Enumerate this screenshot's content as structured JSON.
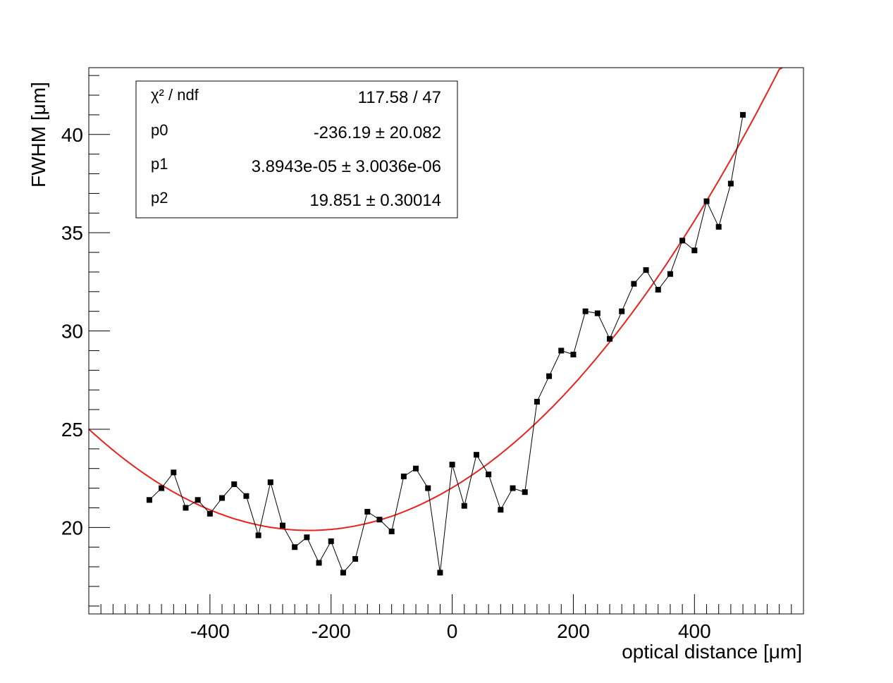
{
  "chart_data": {
    "type": "scatter",
    "xlabel": "optical distance [μm]",
    "ylabel": "FWHM [μm]",
    "xlim": [
      -600,
      580
    ],
    "ylim": [
      15.6,
      43.4
    ],
    "xticks": [
      -400,
      -200,
      0,
      200,
      400
    ],
    "xtick_labels": [
      "-400",
      "-200",
      "0",
      "200",
      "400"
    ],
    "yticks": [
      20,
      25,
      30,
      35,
      40
    ],
    "ytick_labels": [
      "20",
      "25",
      "30",
      "35",
      "40"
    ],
    "grid": false,
    "series": [
      {
        "kind": "points-with-line",
        "color": "#000000",
        "x": [
          -500,
          -480,
          -460,
          -440,
          -420,
          -400,
          -380,
          -360,
          -340,
          -320,
          -300,
          -280,
          -260,
          -240,
          -220,
          -200,
          -180,
          -160,
          -140,
          -120,
          -100,
          -80,
          -60,
          -40,
          -20,
          0,
          20,
          40,
          60,
          80,
          100,
          120,
          140,
          160,
          180,
          200,
          220,
          240,
          260,
          280,
          300,
          320,
          340,
          360,
          380,
          400,
          420,
          440,
          460,
          480
        ],
        "y": [
          21.4,
          22.0,
          22.8,
          21.0,
          21.4,
          20.7,
          21.5,
          22.2,
          21.6,
          19.6,
          22.3,
          20.1,
          19.0,
          19.5,
          18.2,
          19.3,
          17.7,
          18.4,
          20.8,
          20.4,
          19.8,
          22.6,
          23.0,
          22.0,
          17.7,
          23.2,
          21.1,
          23.7,
          22.7,
          20.9,
          22.0,
          21.8,
          26.4,
          27.7,
          29.0,
          28.8,
          31.0,
          30.9,
          29.6,
          31.0,
          32.4,
          33.1,
          32.1,
          32.9,
          34.6,
          34.1,
          36.6,
          35.3,
          37.5,
          41.0
        ]
      },
      {
        "kind": "fit-curve",
        "color": "#e8231e",
        "formula": "p2 + p1*(x - p0)^2",
        "x_range": [
          -600,
          545
        ]
      }
    ],
    "fit_stats": {
      "rows": [
        {
          "label": "χ² / ndf",
          "value": "117.58 / 47"
        },
        {
          "label": "p0",
          "value": "-236.19 ± 20.082"
        },
        {
          "label": "p1",
          "value": "3.8943e-05 ± 3.0036e-06"
        },
        {
          "label": "p2",
          "value": "19.851 ± 0.30014"
        }
      ],
      "params": {
        "p0": -236.19,
        "p1": 3.8943e-05,
        "p2": 19.851
      },
      "units_scale": 1000
    }
  }
}
